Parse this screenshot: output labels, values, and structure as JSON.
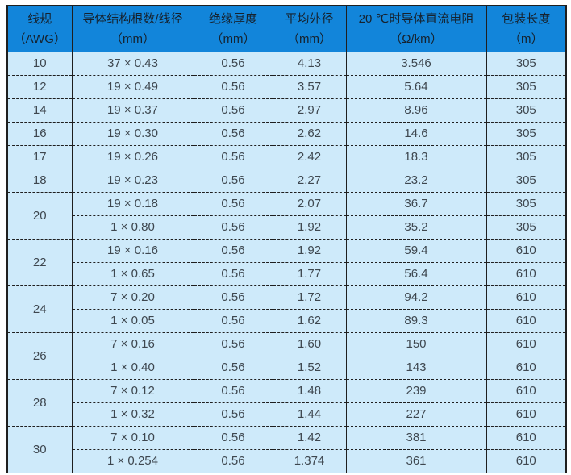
{
  "table": {
    "title_semantic": "AWG wire specification table",
    "colors": {
      "header_bg": "#1285da",
      "row_bg": "#ceeafa",
      "border": "#1f1f1f",
      "header_text": "#16222e",
      "body_text": "#3e474f"
    },
    "columns": [
      {
        "id": "awg",
        "line1": "线规",
        "line2": "（AWG）"
      },
      {
        "id": "structure",
        "line1": "导体结构根数/线径",
        "line2": "（mm）"
      },
      {
        "id": "insulation",
        "line1": "绝缘厚度",
        "line2": "（mm）"
      },
      {
        "id": "outer-diameter",
        "line1": "平均外径",
        "line2": "（mm）"
      },
      {
        "id": "dc-resistance",
        "line1": "20 ℃时导体直流电阻",
        "line2": "（Ω/km）"
      },
      {
        "id": "pack-length",
        "line1": "包装长度",
        "line2": "（m）"
      }
    ],
    "groups": [
      {
        "awg": "10",
        "rows": [
          [
            "37 × 0.43",
            "0.56",
            "4.13",
            "3.546",
            "305"
          ]
        ]
      },
      {
        "awg": "12",
        "rows": [
          [
            "19 × 0.49",
            "0.56",
            "3.57",
            "5.64",
            "305"
          ]
        ]
      },
      {
        "awg": "14",
        "rows": [
          [
            "19 × 0.37",
            "0.56",
            "2.97",
            "8.96",
            "305"
          ]
        ]
      },
      {
        "awg": "16",
        "rows": [
          [
            "19 × 0.30",
            "0.56",
            "2.62",
            "14.6",
            "305"
          ]
        ]
      },
      {
        "awg": "17",
        "rows": [
          [
            "19 × 0.26",
            "0.56",
            "2.42",
            "18.3",
            "305"
          ]
        ]
      },
      {
        "awg": "18",
        "rows": [
          [
            "19 × 0.23",
            "0.56",
            "2.27",
            "23.2",
            "305"
          ]
        ]
      },
      {
        "awg": "20",
        "rows": [
          [
            "19 × 0.18",
            "0.56",
            "2.07",
            "36.7",
            "305"
          ],
          [
            "1 × 0.80",
            "0.56",
            "1.92",
            "35.2",
            "305"
          ]
        ]
      },
      {
        "awg": "22",
        "rows": [
          [
            "19 × 0.16",
            "0.56",
            "1.92",
            "59.4",
            "610"
          ],
          [
            "1 × 0.65",
            "0.56",
            "1.77",
            "56.4",
            "610"
          ]
        ]
      },
      {
        "awg": "24",
        "rows": [
          [
            "7 × 0.20",
            "0.56",
            "1.72",
            "94.2",
            "610"
          ],
          [
            "1 × 0.05",
            "0.56",
            "1.62",
            "89.3",
            "610"
          ]
        ]
      },
      {
        "awg": "26",
        "rows": [
          [
            "7 × 0.16",
            "0.56",
            "1.60",
            "150",
            "610"
          ],
          [
            "1 × 0.40",
            "0.56",
            "1.52",
            "143",
            "610"
          ]
        ]
      },
      {
        "awg": "28",
        "rows": [
          [
            "7 × 0.12",
            "0.56",
            "1.48",
            "239",
            "610"
          ],
          [
            "1 × 0.32",
            "0.56",
            "1.44",
            "227",
            "610"
          ]
        ]
      },
      {
        "awg": "30",
        "rows": [
          [
            "7 × 0.10",
            "0.56",
            "1.42",
            "381",
            "610"
          ],
          [
            "1 × 0.254",
            "0.56",
            "1.374",
            "361",
            "610"
          ]
        ]
      }
    ]
  }
}
